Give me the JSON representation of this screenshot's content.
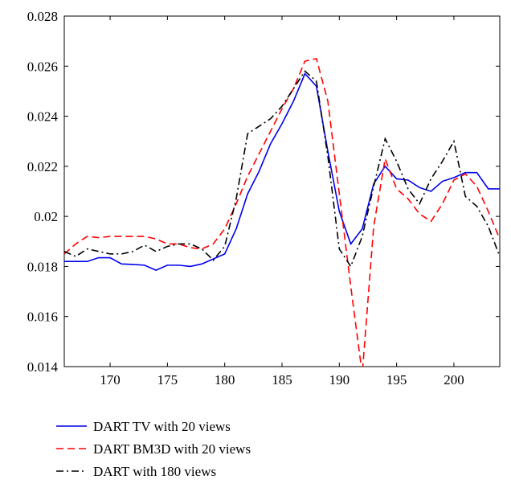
{
  "chart_data": {
    "type": "line",
    "title": "",
    "xlabel": "",
    "ylabel": "",
    "xlim": [
      166,
      204
    ],
    "ylim": [
      0.014,
      0.028
    ],
    "x_ticks": [
      170,
      175,
      180,
      185,
      190,
      195,
      200
    ],
    "x_tick_labels": [
      "170",
      "175",
      "180",
      "185",
      "190",
      "195",
      "200"
    ],
    "y_ticks": [
      0.014,
      0.016,
      0.018,
      0.02,
      0.022,
      0.024,
      0.026,
      0.028
    ],
    "y_tick_labels": [
      "0.014",
      "0.016",
      "0.018",
      "0.02",
      "0.022",
      "0.024",
      "0.026",
      "0.028"
    ],
    "grid": false,
    "legend_position": "bottom",
    "x": [
      166,
      167,
      168,
      169,
      170,
      171,
      172,
      173,
      174,
      175,
      176,
      177,
      178,
      179,
      180,
      181,
      182,
      183,
      184,
      185,
      186,
      187,
      188,
      189,
      190,
      191,
      192,
      193,
      194,
      195,
      196,
      197,
      198,
      199,
      200,
      201,
      202,
      203,
      204
    ],
    "series": [
      {
        "name": "DART TV with 20 views",
        "color": "#0000ee",
        "dash": "solid",
        "values": [
          0.0182,
          0.0182,
          0.0182,
          0.01835,
          0.01835,
          0.0181,
          0.01808,
          0.01805,
          0.01785,
          0.01805,
          0.01805,
          0.018,
          0.0181,
          0.0183,
          0.0185,
          0.0195,
          0.0209,
          0.0218,
          0.0229,
          0.0237,
          0.0246,
          0.0257,
          0.0252,
          0.0226,
          0.0202,
          0.0189,
          0.0195,
          0.0213,
          0.022,
          0.0215,
          0.02145,
          0.02115,
          0.021,
          0.0214,
          0.02155,
          0.02175,
          0.02175,
          0.0211,
          0.0211
        ]
      },
      {
        "name": "DART BM3D with 20 views",
        "color": "#ff0000",
        "dash": "dashed",
        "values": [
          0.0185,
          0.0189,
          0.0192,
          0.01915,
          0.0192,
          0.0192,
          0.0192,
          0.0192,
          0.0191,
          0.0189,
          0.0189,
          0.01875,
          0.0187,
          0.0189,
          0.0195,
          0.0205,
          0.0216,
          0.0225,
          0.0234,
          0.0243,
          0.0251,
          0.0262,
          0.0263,
          0.0246,
          0.0209,
          0.0172,
          0.0137,
          0.0196,
          0.0223,
          0.0211,
          0.0207,
          0.0201,
          0.0198,
          0.0205,
          0.02145,
          0.0217,
          0.0212,
          0.0202,
          0.0191
        ]
      },
      {
        "name": "DART with 180 views",
        "color": "#000000",
        "dash": "dashdot",
        "values": [
          0.0186,
          0.0184,
          0.0187,
          0.0186,
          0.0185,
          0.0185,
          0.0186,
          0.01885,
          0.0186,
          0.0188,
          0.0189,
          0.0189,
          0.0187,
          0.01825,
          0.0188,
          0.0207,
          0.0233,
          0.0236,
          0.0239,
          0.0244,
          0.0251,
          0.0258,
          0.0254,
          0.0224,
          0.0187,
          0.018,
          0.0192,
          0.0212,
          0.0231,
          0.0222,
          0.0211,
          0.0205,
          0.0215,
          0.0222,
          0.023,
          0.0208,
          0.0204,
          0.0196,
          0.0184
        ]
      }
    ]
  }
}
